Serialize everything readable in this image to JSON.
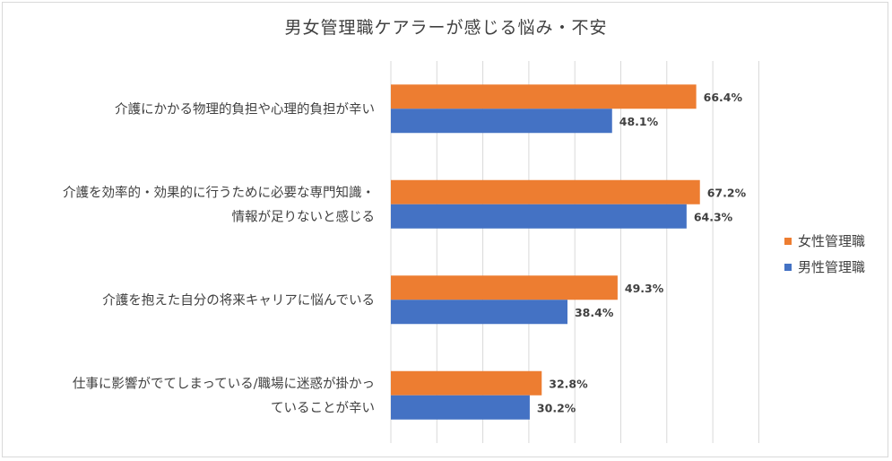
{
  "chart_data": {
    "type": "bar",
    "orientation": "horizontal",
    "title": "男女管理職ケアラーが感じる悩み・不安",
    "categories": [
      [
        "介護にかかる物理的負担や心理的負担が辛い"
      ],
      [
        "介護を効率的・効果的に行うために必要な専門知識・",
        "情報が足りないと感じる"
      ],
      [
        "介護を抱えた自分の将来キャリアに悩んでいる"
      ],
      [
        "仕事に影響がでてしまっている/職場に迷惑が掛かっ",
        "ていることが辛い"
      ]
    ],
    "series": [
      {
        "name": "女性管理職",
        "color": "#ED7D31",
        "values": [
          66.4,
          67.2,
          49.3,
          32.8
        ],
        "labels": [
          "66.4%",
          "67.2%",
          "49.3%",
          "32.8%"
        ]
      },
      {
        "name": "男性管理職",
        "color": "#4472C4",
        "values": [
          48.1,
          64.3,
          38.4,
          30.2
        ],
        "labels": [
          "48.1%",
          "64.3%",
          "38.4%",
          "30.2%"
        ]
      }
    ],
    "xlim": [
      0,
      80
    ],
    "grid": true,
    "legend_position": "right"
  }
}
